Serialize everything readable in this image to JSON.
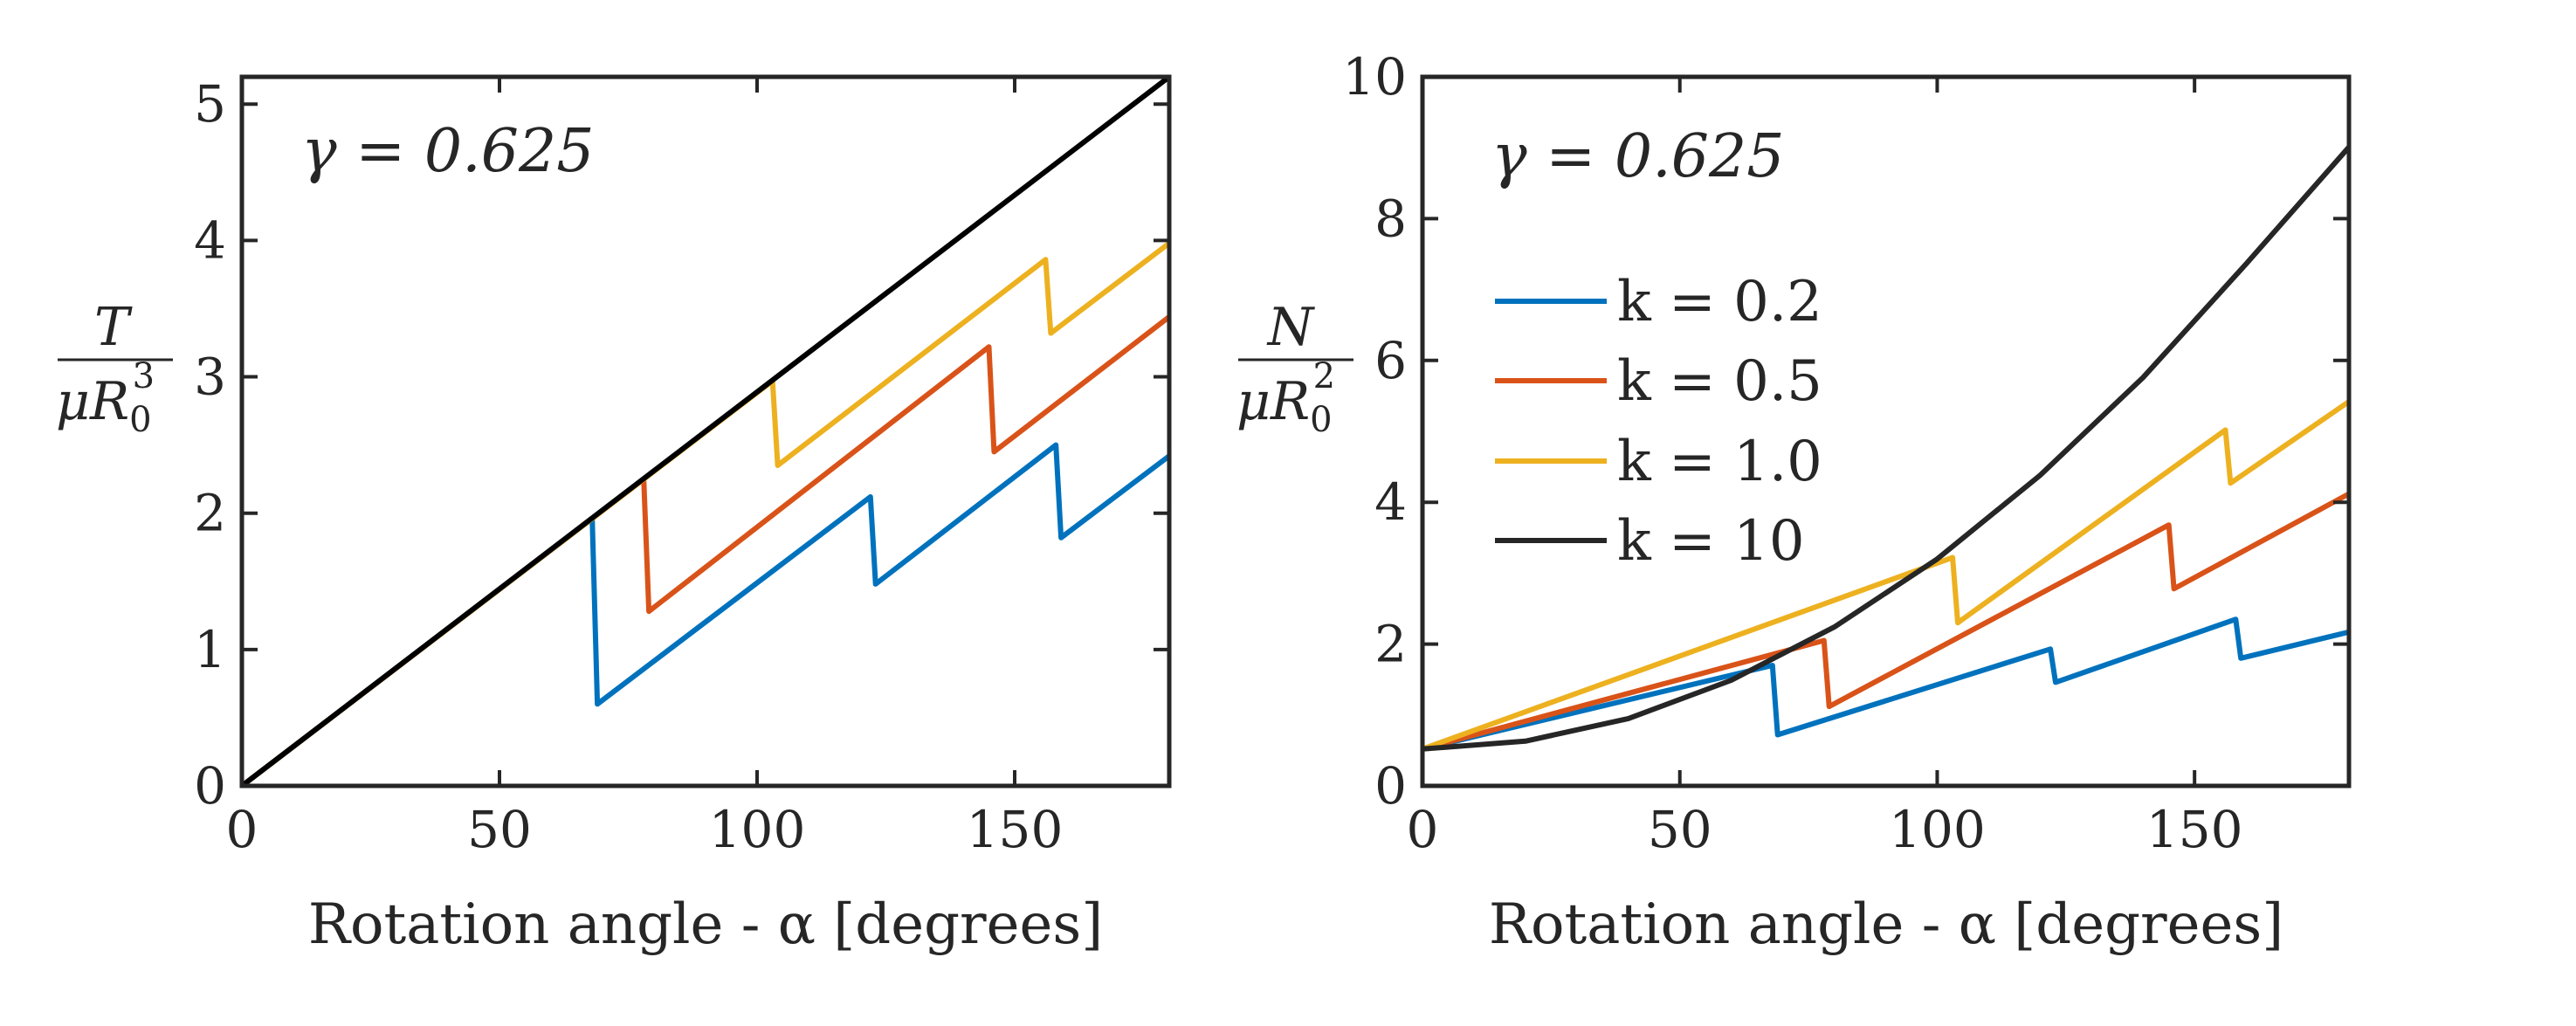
{
  "chart_data": [
    {
      "type": "line",
      "xlabel": "Rotation angle - α [degrees]",
      "ylabel": {
        "numerator": "T",
        "denominator": "μR",
        "sub": "0",
        "sup": "3"
      },
      "annotation": "γ = 0.625",
      "xlim": [
        0,
        180
      ],
      "ylim": [
        0,
        5.2
      ],
      "xticks": [
        0,
        50,
        100,
        150
      ],
      "yticks": [
        0,
        1,
        2,
        3,
        4,
        5
      ],
      "grid": false,
      "series": [
        {
          "color": "#0072BD",
          "points": [
            [
              0,
              0
            ],
            [
              68,
              1.96
            ],
            [
              69,
              0.6
            ],
            [
              122,
              2.12
            ],
            [
              123,
              1.48
            ],
            [
              158,
              2.5
            ],
            [
              159,
              1.82
            ],
            [
              180,
              2.42
            ]
          ]
        },
        {
          "color": "#D95319",
          "points": [
            [
              0,
              0
            ],
            [
              78,
              2.25
            ],
            [
              79,
              1.28
            ],
            [
              145,
              3.22
            ],
            [
              146,
              2.45
            ],
            [
              180,
              3.44
            ]
          ]
        },
        {
          "color": "#EDB120",
          "points": [
            [
              0,
              0
            ],
            [
              103,
              2.97
            ],
            [
              104,
              2.35
            ],
            [
              156,
              3.86
            ],
            [
              157,
              3.32
            ],
            [
              180,
              3.98
            ]
          ]
        },
        {
          "color": "#000000",
          "points": [
            [
              0,
              0
            ],
            [
              180,
              5.2
            ]
          ]
        }
      ]
    },
    {
      "type": "line",
      "xlabel": "Rotation angle - α [degrees]",
      "ylabel": {
        "numerator": "N",
        "denominator": "μR",
        "sub": "0",
        "sup": "2"
      },
      "annotation": "γ = 0.625",
      "xlim": [
        0,
        180
      ],
      "ylim": [
        0,
        10
      ],
      "xticks": [
        0,
        50,
        100,
        150
      ],
      "yticks": [
        0,
        2,
        4,
        6,
        8,
        10
      ],
      "grid": false,
      "legend": {
        "placement": "left",
        "entries": [
          "k = 0.2",
          "k = 0.5",
          "k = 1.0",
          "k = 10"
        ]
      },
      "series": [
        {
          "name": "k = 0.2",
          "color": "#0072BD",
          "points": [
            [
              0,
              0.52
            ],
            [
              68,
              1.7
            ],
            [
              69,
              0.72
            ],
            [
              122,
              1.93
            ],
            [
              123,
              1.46
            ],
            [
              158,
              2.35
            ],
            [
              159,
              1.8
            ],
            [
              180,
              2.17
            ]
          ]
        },
        {
          "name": "k = 0.5",
          "color": "#D95319",
          "points": [
            [
              0,
              0.52
            ],
            [
              78,
              2.05
            ],
            [
              79,
              1.12
            ],
            [
              145,
              3.68
            ],
            [
              146,
              2.78
            ],
            [
              180,
              4.12
            ]
          ]
        },
        {
          "name": "k = 1.0",
          "color": "#EDB120",
          "points": [
            [
              0,
              0.52
            ],
            [
              103,
              3.22
            ],
            [
              104,
              2.3
            ],
            [
              156,
              5.02
            ],
            [
              157,
              4.27
            ],
            [
              180,
              5.42
            ]
          ]
        },
        {
          "name": "k = 10",
          "color": "#262626",
          "points": [
            [
              0,
              0.52
            ],
            [
              20,
              0.63
            ],
            [
              40,
              0.95
            ],
            [
              60,
              1.49
            ],
            [
              80,
              2.24
            ],
            [
              100,
              3.2
            ],
            [
              120,
              4.38
            ],
            [
              140,
              5.76
            ],
            [
              160,
              7.36
            ],
            [
              180,
              9.01
            ]
          ]
        }
      ]
    }
  ]
}
